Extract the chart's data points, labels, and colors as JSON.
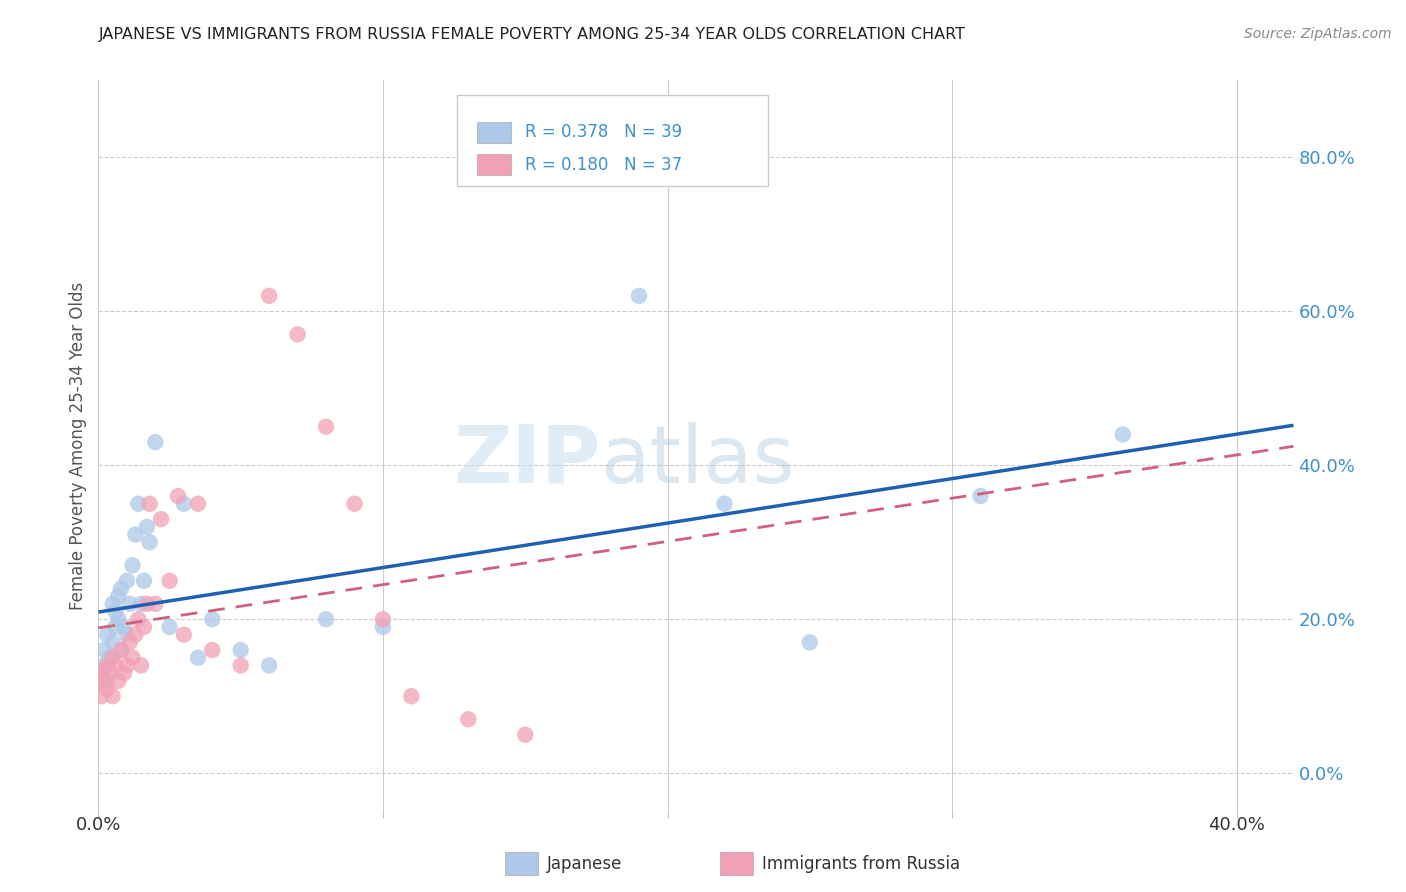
{
  "title": "JAPANESE VS IMMIGRANTS FROM RUSSIA FEMALE POVERTY AMONG 25-34 YEAR OLDS CORRELATION CHART",
  "source": "Source: ZipAtlas.com",
  "ylabel": "Female Poverty Among 25-34 Year Olds",
  "y_tick_labels": [
    "0.0%",
    "20.0%",
    "40.0%",
    "60.0%",
    "80.0%"
  ],
  "y_tick_values": [
    0.0,
    0.2,
    0.4,
    0.6,
    0.8
  ],
  "x_tick_labels": [
    "0.0%",
    "",
    "",
    "",
    "40.0%"
  ],
  "x_tick_values": [
    0.0,
    0.1,
    0.2,
    0.3,
    0.4
  ],
  "xlim": [
    0.0,
    0.42
  ],
  "ylim": [
    -0.05,
    0.9
  ],
  "legend_label1": "R = 0.378   N = 39",
  "legend_label2": "R = 0.180   N = 37",
  "legend_sublabel1": "Japanese",
  "legend_sublabel2": "Immigrants from Russia",
  "color_japanese": "#adc8e8",
  "color_russia": "#f2a0b5",
  "color_line_japanese": "#2060b0",
  "color_line_russia": "#d06080",
  "color_ticks_right": "#4090d0",
  "watermark_zip_color": "#c8dff0",
  "watermark_atlas_color": "#b0cce0",
  "japanese_x": [
    0.001,
    0.002,
    0.002,
    0.003,
    0.003,
    0.004,
    0.005,
    0.005,
    0.006,
    0.006,
    0.007,
    0.007,
    0.008,
    0.008,
    0.009,
    0.01,
    0.01,
    0.011,
    0.012,
    0.013,
    0.014,
    0.015,
    0.016,
    0.017,
    0.018,
    0.02,
    0.025,
    0.03,
    0.035,
    0.04,
    0.05,
    0.06,
    0.08,
    0.1,
    0.19,
    0.22,
    0.25,
    0.31,
    0.36
  ],
  "japanese_y": [
    0.13,
    0.14,
    0.16,
    0.12,
    0.18,
    0.15,
    0.22,
    0.17,
    0.19,
    0.21,
    0.2,
    0.23,
    0.16,
    0.24,
    0.19,
    0.25,
    0.18,
    0.22,
    0.27,
    0.31,
    0.35,
    0.22,
    0.25,
    0.32,
    0.3,
    0.43,
    0.19,
    0.35,
    0.15,
    0.2,
    0.16,
    0.14,
    0.2,
    0.19,
    0.62,
    0.35,
    0.17,
    0.36,
    0.44
  ],
  "russia_x": [
    0.001,
    0.001,
    0.002,
    0.003,
    0.003,
    0.004,
    0.005,
    0.005,
    0.006,
    0.007,
    0.008,
    0.009,
    0.01,
    0.011,
    0.012,
    0.013,
    0.014,
    0.015,
    0.016,
    0.017,
    0.018,
    0.02,
    0.022,
    0.025,
    0.028,
    0.03,
    0.035,
    0.04,
    0.05,
    0.06,
    0.07,
    0.08,
    0.09,
    0.1,
    0.11,
    0.13,
    0.15
  ],
  "russia_y": [
    0.13,
    0.1,
    0.12,
    0.11,
    0.14,
    0.13,
    0.1,
    0.15,
    0.14,
    0.12,
    0.16,
    0.13,
    0.14,
    0.17,
    0.15,
    0.18,
    0.2,
    0.14,
    0.19,
    0.22,
    0.35,
    0.22,
    0.33,
    0.25,
    0.36,
    0.18,
    0.35,
    0.16,
    0.14,
    0.62,
    0.57,
    0.45,
    0.35,
    0.2,
    0.1,
    0.07,
    0.05
  ]
}
